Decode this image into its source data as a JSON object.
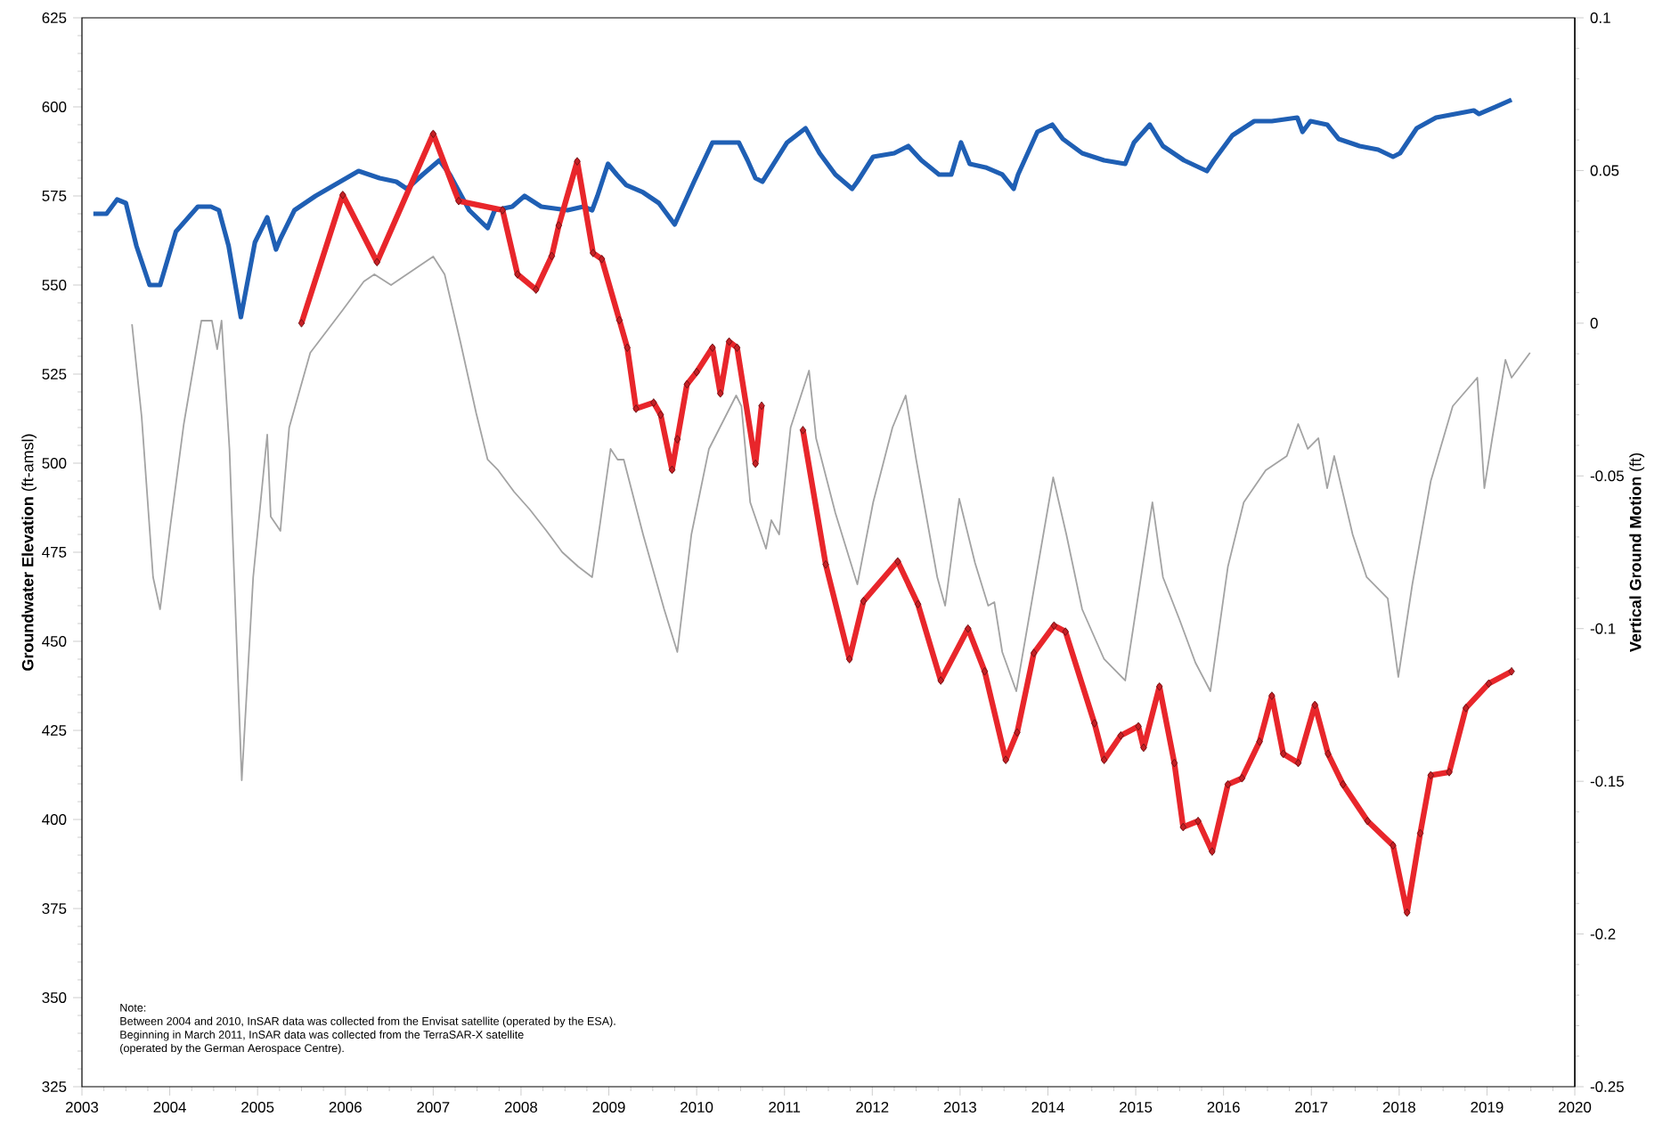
{
  "chart_data": {
    "type": "line",
    "ylabel": "**Groundwater Elevation** (ft-amsl)",
    "y2label": "**Vertical Ground Motion** (ft)",
    "xlim": [
      2003,
      2020
    ],
    "xticks": [
      2003,
      2004,
      2005,
      2006,
      2007,
      2008,
      2009,
      2010,
      2011,
      2012,
      2013,
      2014,
      2015,
      2016,
      2017,
      2018,
      2019,
      2020
    ],
    "ylim": [
      325,
      625
    ],
    "yticks": [
      325,
      350,
      375,
      400,
      425,
      450,
      475,
      500,
      525,
      550,
      575,
      600,
      625
    ],
    "y2lim": [
      -0.25,
      0.1
    ],
    "y2ticks": [
      -0.25,
      -0.2,
      -0.15,
      -0.1,
      -0.05,
      0,
      0.05,
      0.1
    ],
    "annotations": [
      "Note:",
      "Between 2004 and 2010, InSAR data was collected from the Envisat satellite (operated by the ESA).",
      "Beginning in March 2011, InSAR data was collected from the TerraSAR-X satellite",
      "(operated by the German Aerospace Centre)."
    ],
    "series": [
      {
        "color": "#a3a3a3",
        "marker": "none",
        "x": [
          2003.57,
          2003.68,
          2003.81,
          2003.89,
          2004.01,
          2004.16,
          2004.36,
          2004.48,
          2004.54,
          2004.59,
          2004.68,
          2004.82,
          2004.95,
          2005.11,
          2005.15,
          2005.26,
          2005.36,
          2005.6,
          2005.97,
          2006.21,
          2006.33,
          2006.52,
          2006.76,
          2007.0,
          2007.13,
          2007.31,
          2007.49,
          2007.62,
          2007.74,
          2007.92,
          2008.1,
          2008.29,
          2008.47,
          2008.65,
          2008.81,
          2008.9,
          2009.02,
          2009.1,
          2009.17,
          2009.39,
          2009.63,
          2009.78,
          2009.94,
          2010.14,
          2010.45,
          2010.51,
          2010.61,
          2010.79,
          2010.85,
          2010.94,
          2011.07,
          2011.28,
          2011.36,
          2011.58,
          2011.83,
          2012.01,
          2012.23,
          2012.38,
          2012.5,
          2012.74,
          2012.83,
          2012.99,
          2013.17,
          2013.32,
          2013.39,
          2013.48,
          2013.64,
          2013.78,
          2014.06,
          2014.21,
          2014.39,
          2014.64,
          2014.88,
          2015.19,
          2015.31,
          2015.5,
          2015.68,
          2015.85,
          2016.05,
          2016.23,
          2016.48,
          2016.72,
          2016.85,
          2016.96,
          2017.08,
          2017.18,
          2017.26,
          2017.47,
          2017.63,
          2017.87,
          2017.99,
          2018.15,
          2018.36,
          2018.61,
          2018.89,
          2018.97,
          2019.06,
          2019.21,
          2019.28,
          2019.49
        ],
        "values": [
          539,
          513,
          468,
          459,
          483,
          511,
          540,
          540,
          532,
          540,
          504,
          411,
          468,
          508,
          485,
          481,
          510,
          531,
          543,
          551,
          553,
          550,
          554,
          558,
          553,
          534,
          514,
          501,
          498,
          492,
          487,
          481,
          475,
          471,
          468,
          483,
          504,
          501,
          501,
          480,
          459,
          447,
          480,
          504,
          519,
          516,
          489,
          476,
          484,
          480,
          510,
          526,
          507,
          486,
          466,
          489,
          510,
          519,
          501,
          468,
          460,
          490,
          472,
          460,
          461,
          447,
          436,
          456,
          496,
          480,
          459,
          445,
          439,
          489,
          468,
          456,
          444,
          436,
          471,
          489,
          498,
          502,
          511,
          504,
          507,
          493,
          502,
          480,
          468,
          462,
          440,
          466,
          495,
          516,
          524,
          493,
          507,
          529,
          524,
          531
        ]
      },
      {
        "color": "#1f5fb4",
        "marker": "none",
        "x": [
          2003.13,
          2003.28,
          2003.4,
          2003.5,
          2003.62,
          2003.77,
          2003.89,
          2004.07,
          2004.32,
          2004.47,
          2004.56,
          2004.67,
          2004.81,
          2004.97,
          2005.11,
          2005.21,
          2005.26,
          2005.42,
          2005.66,
          2006.15,
          2006.39,
          2006.58,
          2006.7,
          2006.88,
          2007.07,
          2007.19,
          2007.41,
          2007.62,
          2007.7,
          2007.9,
          2008.04,
          2008.23,
          2008.53,
          2008.71,
          2008.81,
          2008.87,
          2008.99,
          2009.09,
          2009.2,
          2009.39,
          2009.57,
          2009.75,
          2009.97,
          2010.18,
          2010.48,
          2010.58,
          2010.67,
          2010.75,
          2011.03,
          2011.24,
          2011.4,
          2011.58,
          2011.77,
          2011.83,
          2012.01,
          2012.25,
          2012.41,
          2012.56,
          2012.76,
          2012.9,
          2013.01,
          2013.11,
          2013.29,
          2013.48,
          2013.61,
          2013.66,
          2013.88,
          2014.05,
          2014.17,
          2014.39,
          2014.64,
          2014.88,
          2014.98,
          2015.16,
          2015.31,
          2015.55,
          2015.81,
          2015.89,
          2016.1,
          2016.35,
          2016.55,
          2016.84,
          2016.9,
          2016.99,
          2017.18,
          2017.31,
          2017.55,
          2017.76,
          2017.93,
          2018.01,
          2018.2,
          2018.42,
          2018.85,
          2018.91,
          2019.1,
          2019.28
        ],
        "values": [
          570,
          570,
          574,
          573,
          561,
          550,
          550,
          565,
          572,
          572,
          571,
          561,
          541,
          562,
          569,
          560,
          563,
          571,
          575,
          582,
          580,
          579,
          577,
          581,
          585,
          581,
          571,
          566,
          571,
          572,
          575,
          572,
          571,
          572,
          571,
          575,
          584,
          581,
          578,
          576,
          573,
          567,
          579,
          590,
          590,
          585,
          580,
          579,
          590,
          594,
          587,
          581,
          577,
          579,
          586,
          587,
          589,
          585,
          581,
          581,
          590,
          584,
          583,
          581,
          577,
          581,
          593,
          595,
          591,
          587,
          585,
          584,
          590,
          595,
          589,
          585,
          582,
          585,
          592,
          596,
          596,
          597,
          593,
          596,
          595,
          591,
          589,
          588,
          586,
          587,
          594,
          597,
          599,
          598,
          600,
          602
        ]
      },
      {
        "color": "#e8262b",
        "marker": "diamond",
        "axis": "y2",
        "x": [
          2005.5,
          2005.97,
          2006.36,
          2007.0,
          2007.29,
          2007.79,
          2007.96,
          2008.17,
          2008.35,
          2008.43,
          2008.64,
          2008.82,
          2008.92,
          2009.12,
          2009.21,
          2009.31,
          2009.51,
          2009.59,
          2009.72,
          2009.78,
          2009.89,
          2010.0,
          2010.18,
          2010.27,
          2010.37,
          2010.46,
          2010.67,
          2010.74,
          2010.95,
          2011.21,
          2011.47,
          2011.74,
          2011.9,
          2012.29,
          2012.52,
          2012.78,
          2013.09,
          2013.28,
          2013.52,
          2013.65,
          2013.84,
          2014.07,
          2014.2,
          2014.53,
          2014.64,
          2014.83,
          2015.03,
          2015.09,
          2015.27,
          2015.44,
          2015.54,
          2015.71,
          2015.87,
          2016.05,
          2016.21,
          2016.41,
          2016.55,
          2016.68,
          2016.85,
          2017.04,
          2017.19,
          2017.36,
          2017.64,
          2017.93,
          2018.09,
          2018.24,
          2018.36,
          2018.57,
          2018.76,
          2019.02,
          2019.28
        ],
        "values": [
          0.0,
          0.042,
          0.02,
          0.062,
          0.04,
          0.037,
          0.016,
          0.011,
          0.022,
          0.032,
          0.053,
          0.023,
          0.021,
          0.001,
          -0.008,
          -0.028,
          -0.026,
          -0.03,
          -0.048,
          -0.038,
          -0.02,
          -0.016,
          -0.008,
          -0.023,
          -0.006,
          -0.008,
          -0.046,
          -0.027,
          null,
          -0.035,
          -0.079,
          -0.11,
          -0.091,
          -0.078,
          -0.092,
          -0.117,
          -0.1,
          -0.114,
          -0.143,
          -0.134,
          -0.108,
          -0.099,
          -0.101,
          -0.131,
          -0.143,
          -0.135,
          -0.132,
          -0.139,
          -0.119,
          -0.144,
          -0.165,
          -0.163,
          -0.173,
          -0.151,
          -0.149,
          -0.137,
          -0.122,
          -0.141,
          -0.144,
          -0.125,
          -0.141,
          -0.151,
          -0.163,
          -0.171,
          -0.193,
          -0.167,
          -0.148,
          -0.147,
          -0.126,
          -0.118,
          -0.114
        ]
      }
    ]
  }
}
